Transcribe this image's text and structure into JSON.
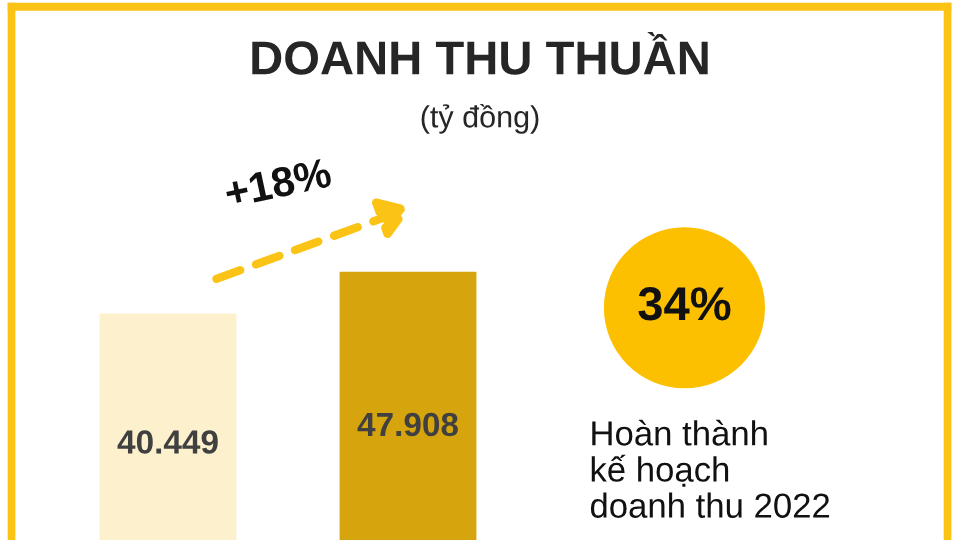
{
  "chart_data": {
    "type": "bar",
    "title": "DOANH THU THUẦN",
    "subtitle": "(tỷ đồng)",
    "categories": [
      null,
      null
    ],
    "values": [
      40449,
      47908
    ],
    "colors": [
      "#fdf0cc",
      "#d6a40c"
    ],
    "value_labels": [
      "40.449",
      "47.908"
    ],
    "annotations": [
      "+18%",
      "34%",
      "Hoàn thành\nkế hoạch\ndoanh thu 2022"
    ]
  }
}
